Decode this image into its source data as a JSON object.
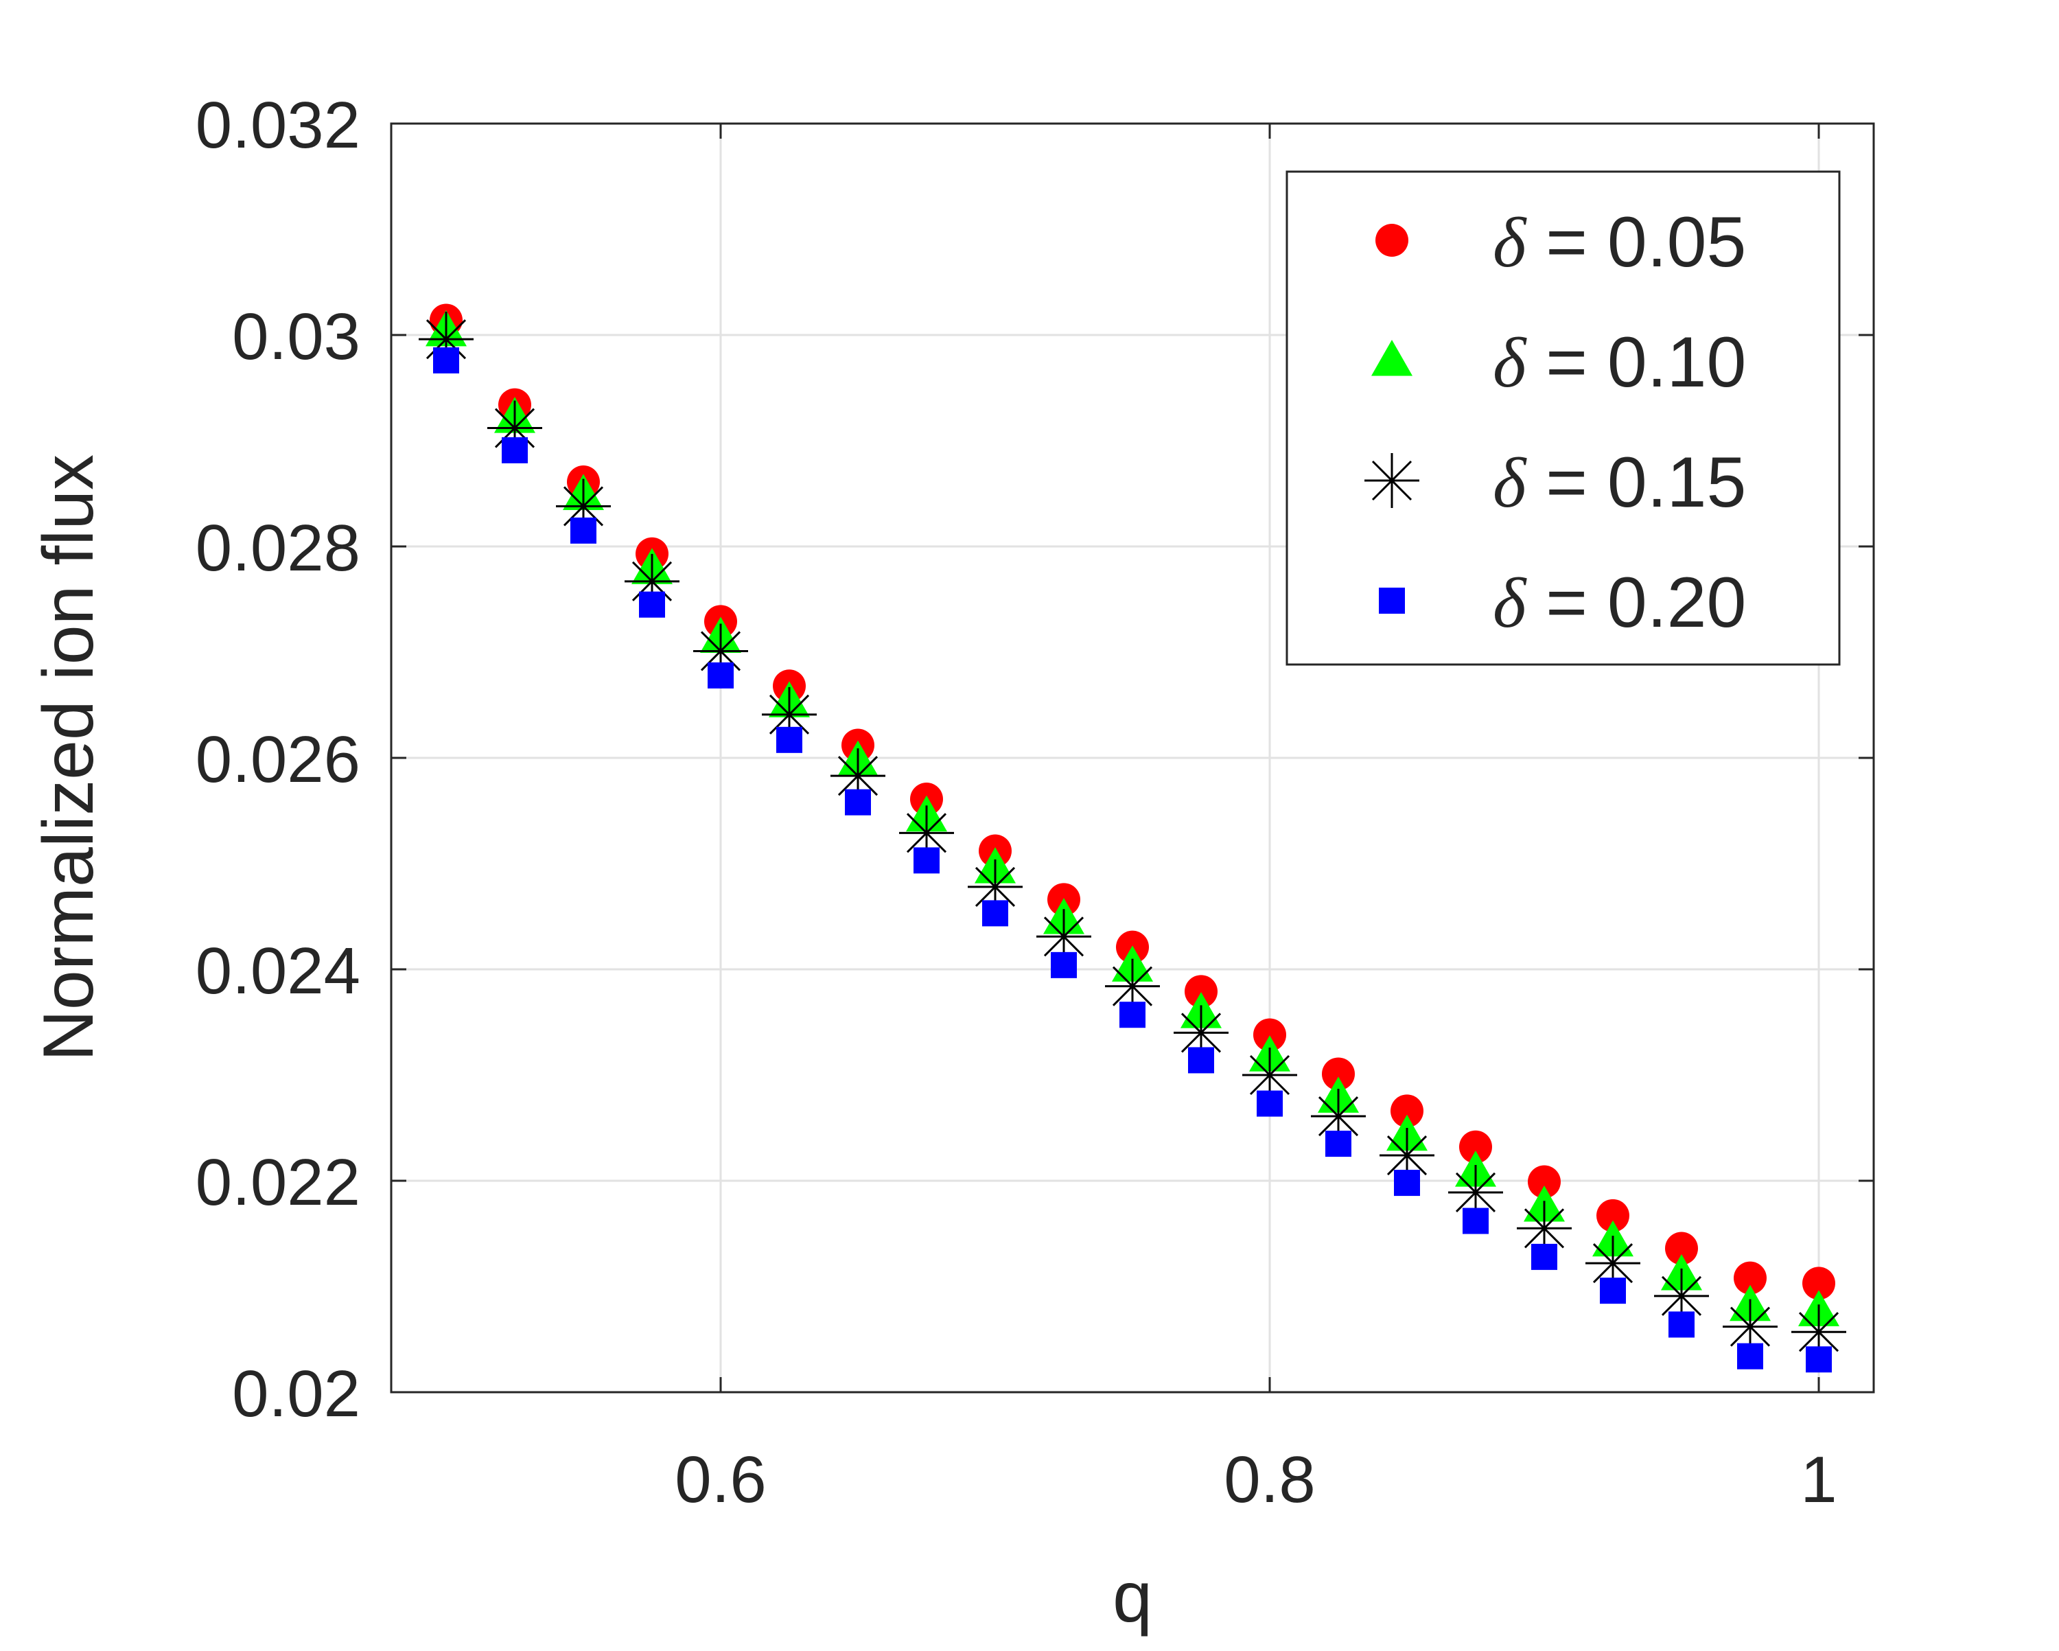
{
  "chart_data": {
    "type": "scatter",
    "title": "",
    "xlabel": "q",
    "ylabel": "Normalized ion flux",
    "xlim": [
      0.48,
      1.02
    ],
    "ylim": [
      0.02,
      0.032
    ],
    "xticks": [
      0.6,
      0.8,
      1.0
    ],
    "xtick_labels": [
      "0.6",
      "0.8",
      "1"
    ],
    "yticks": [
      0.02,
      0.022,
      0.024,
      0.026,
      0.028,
      0.03,
      0.032
    ],
    "ytick_labels": [
      "0.02",
      "0.022",
      "0.024",
      "0.026",
      "0.028",
      "0.03",
      "0.032"
    ],
    "grid": true,
    "legend_position": "top-right",
    "x": [
      0.5,
      0.525,
      0.55,
      0.575,
      0.6,
      0.625,
      0.65,
      0.675,
      0.7,
      0.725,
      0.75,
      0.775,
      0.8,
      0.825,
      0.85,
      0.875,
      0.9,
      0.925,
      0.95,
      0.975,
      1.0
    ],
    "series": [
      {
        "name": "δ = 0.05",
        "marker": "circle",
        "color": "#ff0000",
        "values": [
          0.03014,
          0.02934,
          0.02861,
          0.02793,
          0.02729,
          0.02668,
          0.02612,
          0.02561,
          0.02512,
          0.02466,
          0.02421,
          0.02379,
          0.02338,
          0.02301,
          0.02266,
          0.02232,
          0.02199,
          0.02167,
          0.02136,
          0.02108,
          0.02103
        ]
      },
      {
        "name": "δ = 0.10",
        "marker": "triangle",
        "color": "#00ff00",
        "values": [
          0.03004,
          0.02922,
          0.02849,
          0.02779,
          0.02714,
          0.02653,
          0.02597,
          0.02545,
          0.02496,
          0.02448,
          0.02403,
          0.02359,
          0.02318,
          0.02279,
          0.02243,
          0.02209,
          0.02176,
          0.02143,
          0.02111,
          0.02082,
          0.02077
        ]
      },
      {
        "name": "δ = 0.15",
        "marker": "asterisk",
        "color": "#000000",
        "values": [
          0.02996,
          0.02912,
          0.02838,
          0.02767,
          0.02701,
          0.02641,
          0.02583,
          0.02529,
          0.02478,
          0.02431,
          0.02384,
          0.0234,
          0.023,
          0.02261,
          0.02224,
          0.02189,
          0.02155,
          0.02122,
          0.02091,
          0.02062,
          0.02057
        ]
      },
      {
        "name": "δ = 0.20",
        "marker": "square",
        "color": "#0000ff",
        "values": [
          0.02976,
          0.02891,
          0.02815,
          0.02745,
          0.02678,
          0.02617,
          0.02558,
          0.02503,
          0.02453,
          0.02404,
          0.02357,
          0.02314,
          0.02273,
          0.02235,
          0.02198,
          0.02162,
          0.02128,
          0.02096,
          0.02064,
          0.02034,
          0.02031
        ]
      }
    ]
  }
}
